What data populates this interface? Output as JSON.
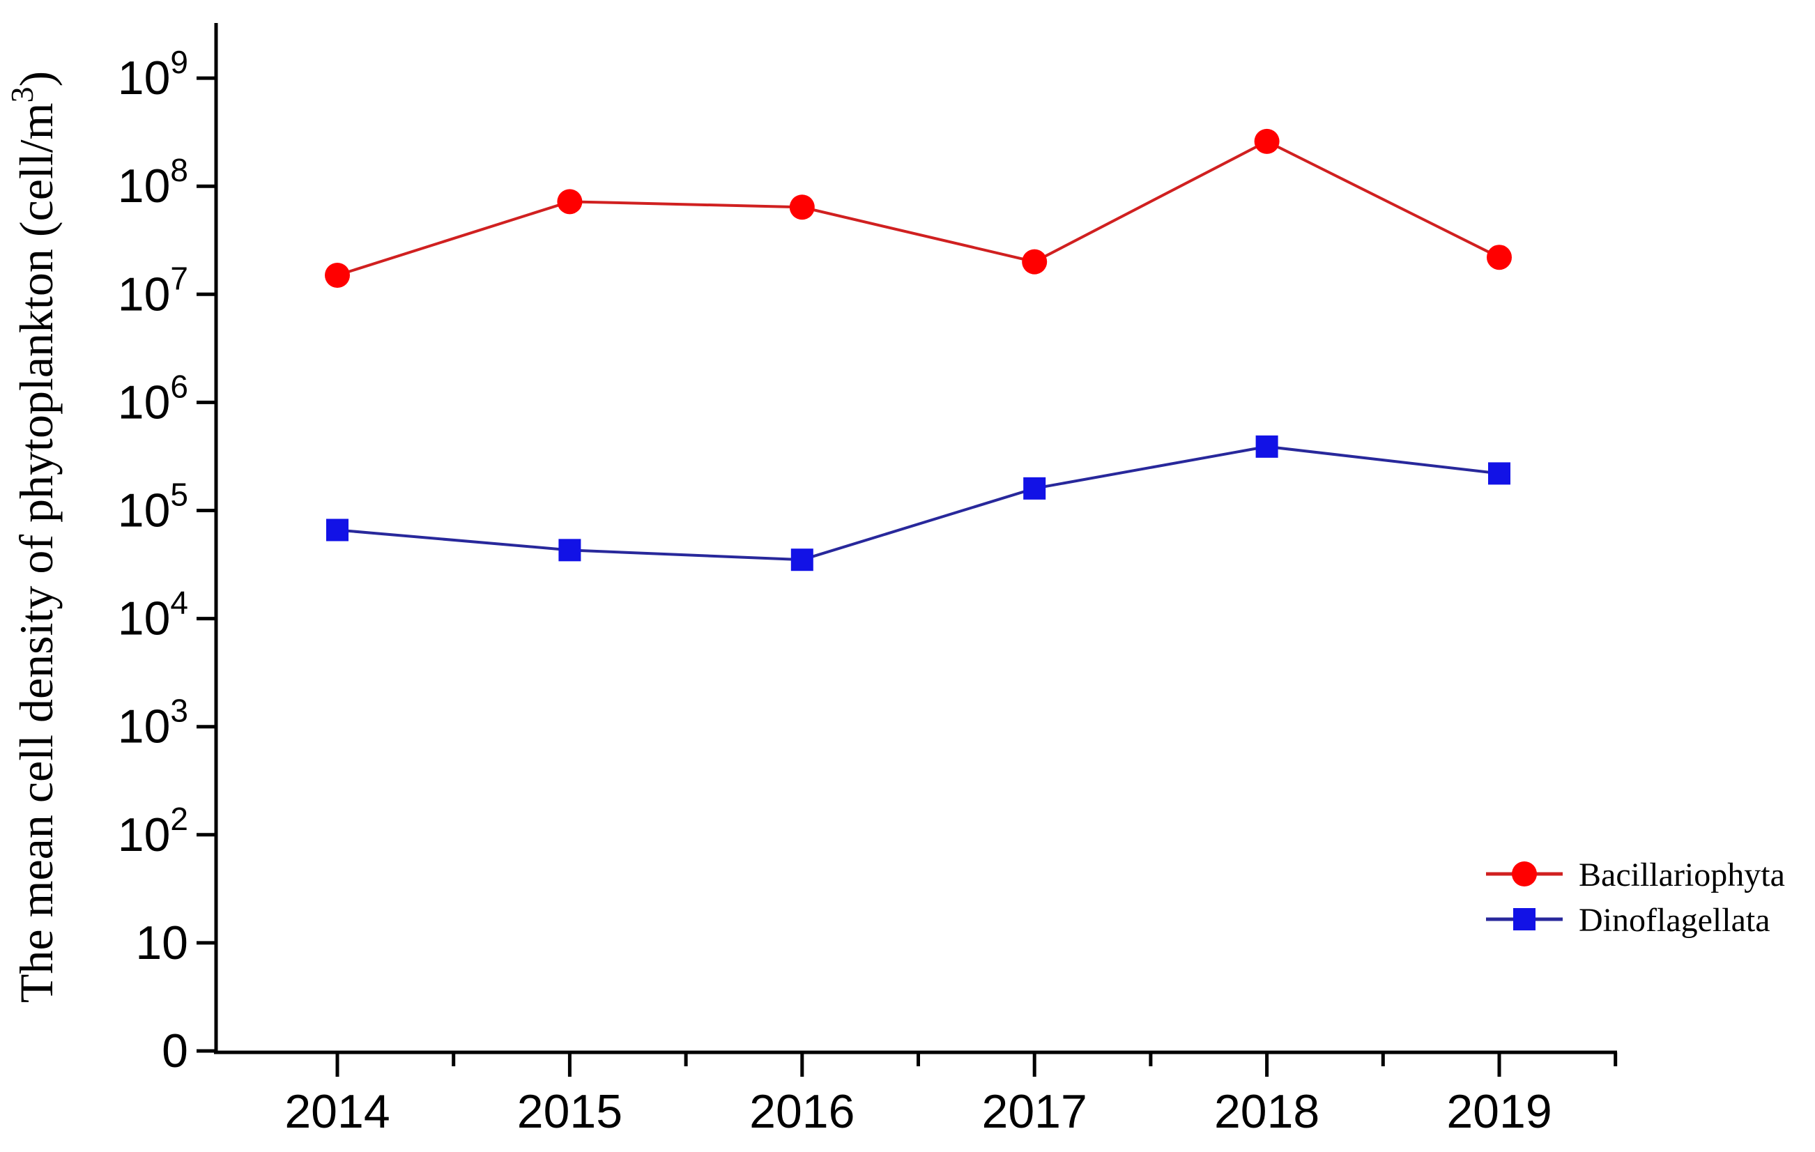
{
  "figure": {
    "background_color": "#ffffff",
    "axis_color": "#000000"
  },
  "chart_data": {
    "type": "line",
    "title": "",
    "xlabel": "",
    "ylabel": "The mean cell density of phytoplankton (cell/m³)",
    "x": [
      2014,
      2015,
      2016,
      2017,
      2018,
      2019
    ],
    "x_tick_labels": [
      "2014",
      "2015",
      "2016",
      "2017",
      "2018",
      "2019"
    ],
    "y_scale": "log",
    "y_axis_top_value": 1000000000,
    "y_ticks": [
      {
        "base": "10",
        "exp": "9",
        "value": 1000000000
      },
      {
        "base": "10",
        "exp": "8",
        "value": 100000000
      },
      {
        "base": "10",
        "exp": "7",
        "value": 10000000
      },
      {
        "base": "10",
        "exp": "6",
        "value": 1000000
      },
      {
        "base": "10",
        "exp": "5",
        "value": 100000
      },
      {
        "base": "10",
        "exp": "4",
        "value": 10000
      },
      {
        "base": "10",
        "exp": "3",
        "value": 1000
      },
      {
        "base": "10",
        "exp": "2",
        "value": 100
      },
      {
        "base": "10",
        "exp": "",
        "value": 10
      },
      {
        "base": "0",
        "exp": "",
        "value": null
      }
    ],
    "grid": false,
    "legend_position": "bottom-right",
    "series": [
      {
        "name": "Bacillariophyta",
        "marker": "circle",
        "marker_color": "#ff0000",
        "line_color": "#d02020",
        "values": [
          15000000,
          72000000,
          64000000,
          20000000,
          260000000,
          22000000
        ]
      },
      {
        "name": "Dinoflagellata",
        "marker": "square",
        "marker_color": "#1212e6",
        "line_color": "#28289b",
        "values": [
          66000,
          43000,
          35000,
          160000,
          390000,
          220000
        ]
      }
    ]
  }
}
